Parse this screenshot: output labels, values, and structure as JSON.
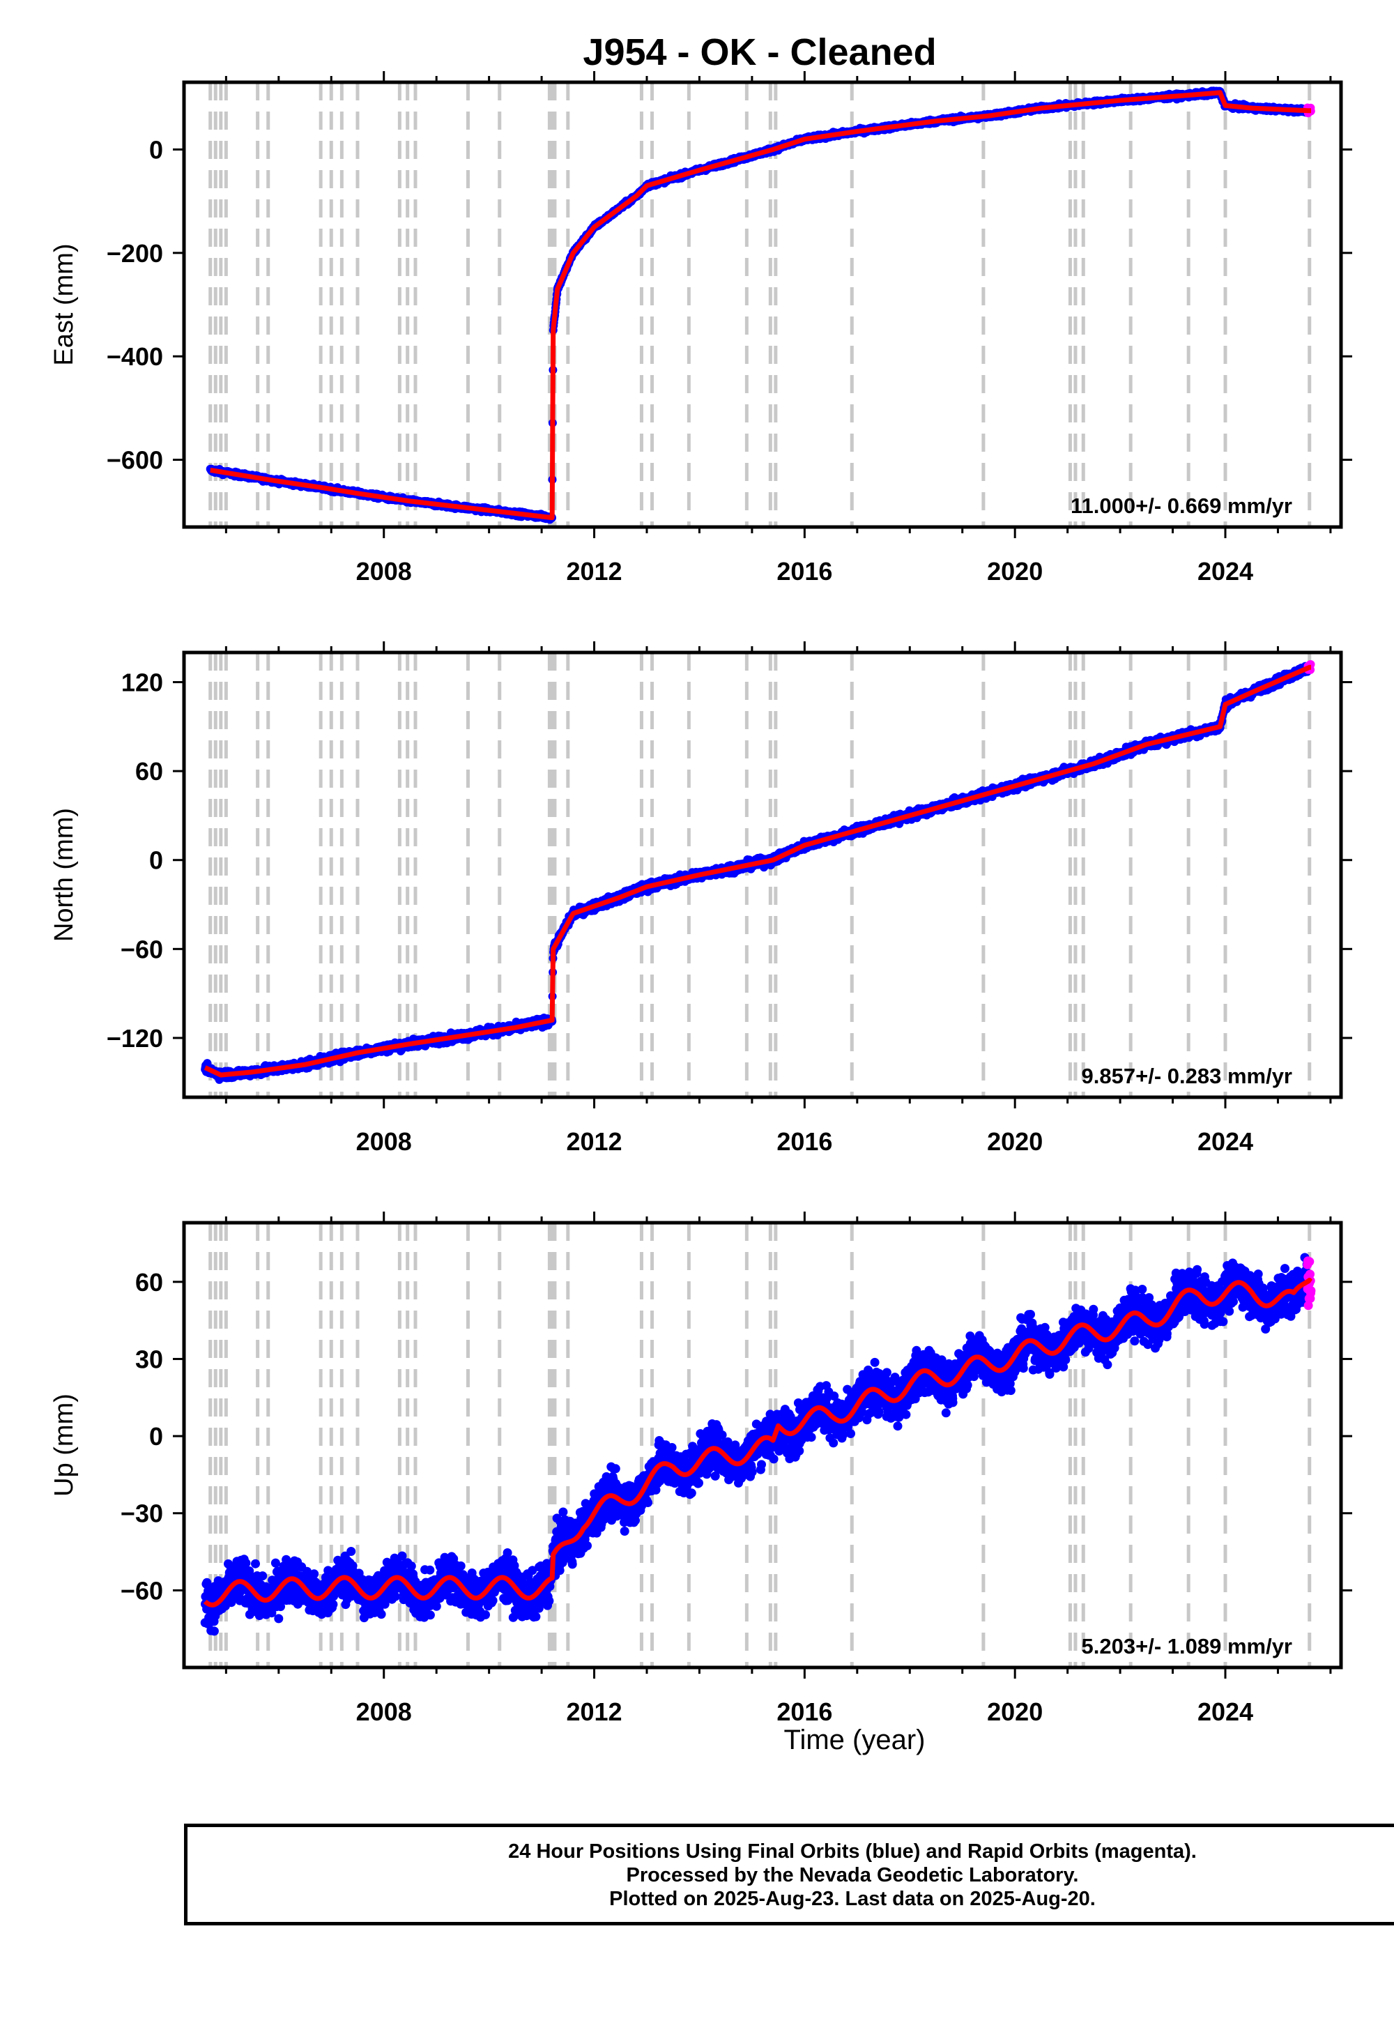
{
  "title": "J954  - OK - Cleaned",
  "x_axis_label": "Time (year)",
  "footer": {
    "line1": "24 Hour Positions Using Final Orbits (blue) and Rapid Orbits (magenta).",
    "line2": "Processed by the Nevada Geodetic Laboratory.",
    "line3": "Plotted on 2025-Aug-23. Last data on 2025-Aug-20."
  },
  "colors": {
    "final_orbits": "#0000ff",
    "rapid_orbits": "#ff00ff",
    "model": "#ff0000",
    "event_lines": "#c8c8c8"
  },
  "chart_data": [
    {
      "type": "scatter",
      "ylabel": "East (mm)",
      "xlim": [
        2004.2,
        2026.2
      ],
      "ylim": [
        -730,
        130
      ],
      "x_ticks": [
        "2008",
        "2012",
        "2016",
        "2020",
        "2024"
      ],
      "y_ticks": [
        "0",
        "−200",
        "−400",
        "−600"
      ],
      "rate": "11.000+/- 0.669 mm/yr",
      "model_breakpoints": [
        [
          2004.7,
          -620
        ],
        [
          2005.9,
          -640
        ],
        [
          2006.9,
          -655
        ],
        [
          2007.5,
          -665
        ],
        [
          2008.5,
          -680
        ],
        [
          2009.6,
          -693
        ],
        [
          2011.2,
          -712
        ],
        [
          2011.22,
          -350
        ],
        [
          2011.3,
          -270
        ],
        [
          2011.6,
          -200
        ],
        [
          2012.0,
          -150
        ],
        [
          2012.8,
          -90
        ],
        [
          2013.0,
          -70
        ],
        [
          2014.0,
          -40
        ],
        [
          2015.4,
          0
        ],
        [
          2016.0,
          20
        ],
        [
          2017.0,
          35
        ],
        [
          2018.5,
          55
        ],
        [
          2019.5,
          65
        ],
        [
          2020.5,
          80
        ],
        [
          2022.0,
          95
        ],
        [
          2023.3,
          105
        ],
        [
          2023.9,
          110
        ],
        [
          2024.0,
          85
        ],
        [
          2024.5,
          80
        ],
        [
          2025.6,
          75
        ]
      ],
      "noise_mm": 3
    },
    {
      "type": "scatter",
      "ylabel": "North (mm)",
      "xlim": [
        2004.2,
        2026.2
      ],
      "ylim": [
        -160,
        140
      ],
      "x_ticks": [
        "2008",
        "2012",
        "2016",
        "2020",
        "2024"
      ],
      "y_ticks": [
        "120",
        "60",
        "0",
        "−60",
        "−120"
      ],
      "rate": "9.857+/- 0.283 mm/yr",
      "model_breakpoints": [
        [
          2004.6,
          -140
        ],
        [
          2004.9,
          -145
        ],
        [
          2005.5,
          -143
        ],
        [
          2006.5,
          -138
        ],
        [
          2007.5,
          -130
        ],
        [
          2008.5,
          -124
        ],
        [
          2009.6,
          -118
        ],
        [
          2010.5,
          -113
        ],
        [
          2011.2,
          -108
        ],
        [
          2011.22,
          -60
        ],
        [
          2011.6,
          -36
        ],
        [
          2012.5,
          -25
        ],
        [
          2013.0,
          -18
        ],
        [
          2014.0,
          -10
        ],
        [
          2015.4,
          0
        ],
        [
          2016.0,
          10
        ],
        [
          2017.0,
          20
        ],
        [
          2018.5,
          35
        ],
        [
          2019.5,
          45
        ],
        [
          2020.5,
          55
        ],
        [
          2021.5,
          65
        ],
        [
          2022.5,
          78
        ],
        [
          2023.9,
          90
        ],
        [
          2024.0,
          105
        ],
        [
          2024.5,
          113
        ],
        [
          2025.6,
          130
        ]
      ],
      "noise_mm": 2
    },
    {
      "type": "scatter",
      "ylabel": "Up (mm)",
      "xlim": [
        2004.2,
        2026.2
      ],
      "ylim": [
        -90,
        83
      ],
      "x_ticks": [
        "2008",
        "2012",
        "2016",
        "2020",
        "2024"
      ],
      "y_ticks": [
        "60",
        "30",
        "0",
        "−30",
        "−60"
      ],
      "rate": "5.203+/- 1.089 mm/yr",
      "model_breakpoints": [
        [
          2004.6,
          -62
        ],
        [
          2005.5,
          -60
        ],
        [
          2007.0,
          -59
        ],
        [
          2009.0,
          -59
        ],
        [
          2011.2,
          -59
        ],
        [
          2011.22,
          -50
        ],
        [
          2011.8,
          -32
        ],
        [
          2012.5,
          -25
        ],
        [
          2013.5,
          -12
        ],
        [
          2015.4,
          -4
        ],
        [
          2015.5,
          4
        ],
        [
          2016.5,
          8
        ],
        [
          2018.0,
          20
        ],
        [
          2019.5,
          28
        ],
        [
          2021.0,
          38
        ],
        [
          2022.5,
          45
        ],
        [
          2023.5,
          55
        ],
        [
          2024.5,
          56
        ],
        [
          2025.3,
          52
        ],
        [
          2025.6,
          63
        ]
      ],
      "noise_mm": 6,
      "seasonal_amplitude_mm": 4
    }
  ],
  "event_years": [
    2004.7,
    2004.8,
    2004.9,
    2005.0,
    2005.6,
    2005.8,
    2006.8,
    2007.0,
    2007.2,
    2007.5,
    2008.3,
    2008.45,
    2008.6,
    2009.6,
    2010.2,
    2011.15,
    2011.2,
    2011.25,
    2011.5,
    2012.9,
    2013.1,
    2013.8,
    2014.9,
    2015.35,
    2015.45,
    2016.9,
    2019.4,
    2021.05,
    2021.15,
    2021.3,
    2022.2,
    2023.3,
    2024.0,
    2025.6
  ]
}
